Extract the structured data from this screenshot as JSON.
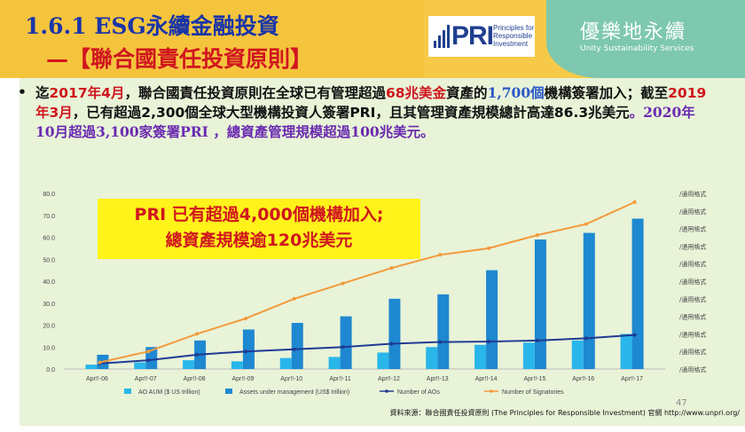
{
  "header": {
    "title_line1": "1.6.1  ESG永續金融投資",
    "title_line2": "—【聯合國責任投資原則】",
    "pri_logo_text": "PRI",
    "pri_logo_sub": [
      "Principles for",
      "Responsible",
      "Investment"
    ],
    "brand_name": "優樂地永續",
    "brand_en": "Unity Sustainability Services"
  },
  "bullet": {
    "symbol": "•",
    "p1": "迄",
    "p2": "2017年4月",
    "p3": "，聯合國責任投資原則在全球已有管理超過",
    "p4": "68兆美金",
    "p5": "資產的",
    "p6": "1,700個",
    "p7": "機構簽署加入；截至",
    "p8": "2019年3月",
    "p9": "，已有超過2,300個全球大型機構投資人簽署PRI，且其管理資產規模總計高達86.3兆美元",
    "p10": "。2020年10月超過3,100家簽署PRI ，總資產管理規模超過100兆美元。"
  },
  "callout": {
    "line1": "PRI 已有超過4,000個機構加入;",
    "line2": "總資產規模逾120兆美元"
  },
  "chart_data": {
    "type": "bar",
    "categories": [
      "Apr!!-06",
      "Apr!!-07",
      "Apr!!-08",
      "Apr!!-09",
      "Apr!!-10",
      "Apr!!-11",
      "Apr!!-12",
      "Apr!!-13",
      "Apr!!-14",
      "Apr!!-15",
      "Apr!!-16",
      "Apr!!-17"
    ],
    "y_ticks": [
      "0.0",
      "10.0",
      "20.0",
      "30.0",
      "40.0",
      "50.0",
      "60.0",
      "70.0",
      "80.0"
    ],
    "ylim": [
      0,
      80
    ],
    "right_tick_label": "/通用格式",
    "right_tick_count": 11,
    "series": [
      {
        "name": "AO AUM ($ US trillion)",
        "kind": "bar",
        "color": "#29b6ea",
        "values": [
          2,
          3,
          4,
          3.5,
          5,
          5.5,
          7.5,
          10,
          11,
          12,
          13,
          16
        ]
      },
      {
        "name": "Assets under management (US$ trillion)",
        "kind": "bar",
        "color": "#1e88d0",
        "values": [
          6.5,
          10,
          13,
          18,
          21,
          24,
          32,
          34,
          45,
          59,
          62,
          68.5
        ]
      },
      {
        "name": "Number of AOs",
        "kind": "line",
        "color": "#1f3a93",
        "values": [
          2.5,
          4,
          6.5,
          8,
          9,
          10,
          11.5,
          12.3,
          12.5,
          13,
          14,
          15.5
        ]
      },
      {
        "name": "Number of Signatories",
        "kind": "line",
        "color": "#f39a3b",
        "values": [
          3,
          8,
          16,
          23,
          32,
          39,
          46,
          52,
          55,
          61,
          66,
          76
        ]
      }
    ]
  },
  "footnote": "資料來源：聯合國責任投資原則 (The Principles for Responsible Investment) 官網 http://www.unpri.org/",
  "page_number": "47"
}
